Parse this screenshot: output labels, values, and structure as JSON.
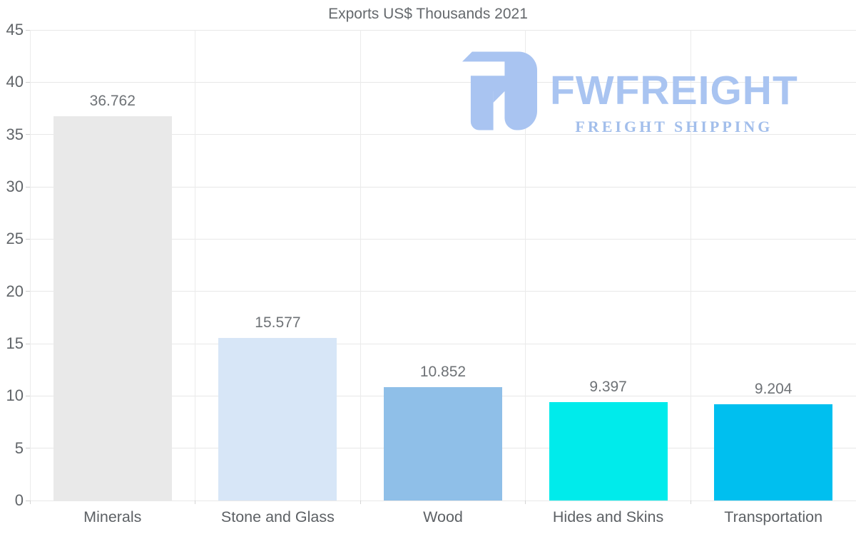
{
  "title": "Exports US$ Thousands 2021",
  "logo": {
    "wordmark": "FWFREIGHT",
    "tagline": "FREIGHT SHIPPING",
    "color": "#a9c4f1"
  },
  "chart_data": {
    "type": "bar",
    "title": "Exports US$ Thousands 2021",
    "categories": [
      "Minerals",
      "Stone and Glass",
      "Wood",
      "Hides and Skins",
      "Transportation"
    ],
    "values": [
      36.762,
      15.577,
      10.852,
      9.397,
      9.204
    ],
    "value_labels": [
      "36.762",
      "15.577",
      "10.852",
      "9.397",
      "9.204"
    ],
    "bar_colors": [
      "#e9e9e9",
      "#d7e6f7",
      "#8fbfe8",
      "#00ebeb",
      "#00bfef"
    ],
    "xlabel": "",
    "ylabel": "",
    "ylim": [
      0,
      45
    ],
    "ytick_step": 5,
    "ytick_labels": [
      "0",
      "5",
      "10",
      "15",
      "20",
      "25",
      "30",
      "35",
      "40",
      "45"
    ],
    "grid": true,
    "legend_position": "none",
    "gridline_color": "#e8e8e8",
    "axis_text_color": "#606468",
    "value_text_color": "#6e7276",
    "title_color": "#65696d"
  }
}
